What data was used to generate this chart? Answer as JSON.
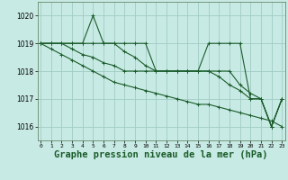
{
  "bg_color": "#c8eae4",
  "grid_color": "#a0ccc4",
  "line_color": "#1a5c2a",
  "xlabel": "Graphe pression niveau de la mer (hPa)",
  "xlabel_fontsize": 7.5,
  "xlim": [
    0,
    23
  ],
  "ylim": [
    1015.5,
    1020.5
  ],
  "yticks": [
    1016,
    1017,
    1018,
    1019,
    1020
  ],
  "xticks": [
    0,
    1,
    2,
    3,
    4,
    5,
    6,
    7,
    8,
    9,
    10,
    11,
    12,
    13,
    14,
    15,
    16,
    17,
    18,
    19,
    20,
    21,
    22,
    23
  ],
  "lines": [
    [
      1019,
      1019,
      1019,
      1019,
      1019,
      1020,
      1019,
      1019,
      1019,
      1019,
      1019,
      1018,
      1018,
      1018,
      1018,
      1018,
      1019,
      1019,
      1019,
      1019,
      1017,
      1017,
      1016,
      1017
    ],
    [
      1019,
      1019,
      1019,
      1019,
      1019,
      1019,
      1019,
      1019,
      1018.7,
      1018.5,
      1018.2,
      1018,
      1018,
      1018,
      1018,
      1018,
      1018,
      1018,
      1018,
      1017.5,
      1017.2,
      1017,
      1016,
      1017
    ],
    [
      1019,
      1019,
      1019,
      1018.8,
      1018.6,
      1018.5,
      1018.3,
      1018.2,
      1018,
      1018,
      1018,
      1018,
      1018,
      1018,
      1018,
      1018,
      1018,
      1017.8,
      1017.5,
      1017.3,
      1017,
      1017,
      1016,
      1017
    ],
    [
      1019,
      1018.8,
      1018.6,
      1018.4,
      1018.2,
      1018,
      1017.8,
      1017.6,
      1017.5,
      1017.4,
      1017.3,
      1017.2,
      1017.1,
      1017.0,
      1016.9,
      1016.8,
      1016.8,
      1016.7,
      1016.6,
      1016.5,
      1016.4,
      1016.3,
      1016.2,
      1016.0
    ]
  ]
}
